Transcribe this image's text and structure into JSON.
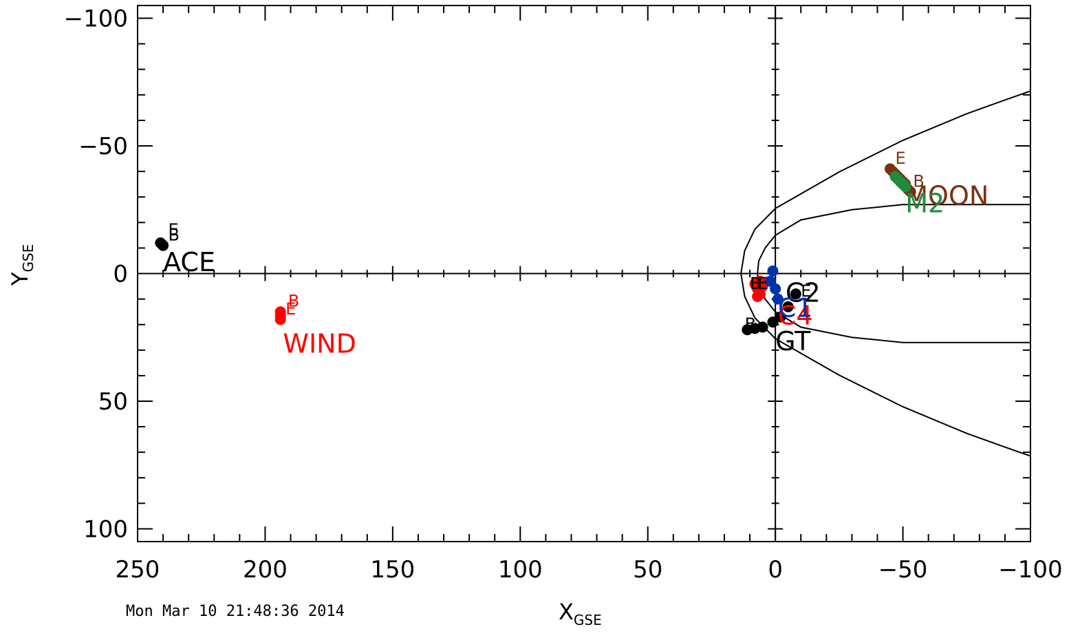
{
  "chart_data": {
    "type": "scatter",
    "xlabel": {
      "main": "X",
      "sub": "GSE"
    },
    "ylabel": {
      "main": "Y",
      "sub": "GSE"
    },
    "xlim": [
      250,
      -100
    ],
    "ylim": [
      -105,
      105
    ],
    "x_ticks": [
      250,
      200,
      150,
      100,
      50,
      0,
      -50,
      -100
    ],
    "x_tick_labels": [
      "250",
      "200",
      "150",
      "100",
      "50",
      "0",
      "−50",
      "−100"
    ],
    "y_ticks": [
      -100,
      -50,
      0,
      50,
      100
    ],
    "y_tick_labels": [
      "−100",
      "−50",
      "0",
      "50",
      "100"
    ],
    "x_minor_step": 10,
    "y_minor_step": 10,
    "reference_lines": {
      "x0": true,
      "y0": true
    },
    "boundaries": {
      "bow_shock": [
        [
          -100,
          -71.5
        ],
        [
          -90,
          -68
        ],
        [
          -75,
          -62.6
        ],
        [
          -50,
          -52.2
        ],
        [
          -25,
          -39.8
        ],
        [
          0,
          -25.5
        ],
        [
          8,
          -17.4
        ],
        [
          12,
          -9
        ],
        [
          13.5,
          0
        ],
        [
          12,
          9
        ],
        [
          8,
          17.4
        ],
        [
          0,
          25.5
        ],
        [
          -25,
          39.8
        ],
        [
          -50,
          52.2
        ],
        [
          -75,
          62.6
        ],
        [
          -90,
          68
        ],
        [
          -100,
          71.5
        ]
      ],
      "magnetopause": [
        [
          -100,
          -27
        ],
        [
          -80,
          -27
        ],
        [
          -50,
          -27
        ],
        [
          -30,
          -25
        ],
        [
          -10,
          -21
        ],
        [
          0,
          -15
        ],
        [
          4,
          -10
        ],
        [
          6.5,
          -5
        ],
        [
          7,
          0
        ],
        [
          6.5,
          5
        ],
        [
          4,
          10
        ],
        [
          0,
          15
        ],
        [
          -10,
          21
        ],
        [
          -30,
          25
        ],
        [
          -50,
          27
        ],
        [
          -80,
          27
        ],
        [
          -100,
          27
        ]
      ]
    },
    "series": [
      {
        "name": "ACE",
        "color": "#000000",
        "points": [
          [
            241,
            -12
          ],
          [
            240.5,
            -11.5
          ],
          [
            240,
            -11
          ]
        ],
        "label_pos": [
          240,
          -1
        ]
      },
      {
        "name": "WIND",
        "color": "#ff0000",
        "points": [
          [
            194,
            15
          ],
          [
            194,
            16.5
          ],
          [
            194,
            18
          ]
        ],
        "label_pos": [
          193,
          31
        ]
      },
      {
        "name": "MOON",
        "color": "#7b3010",
        "points": [
          [
            -45,
            -41
          ],
          [
            -46,
            -40
          ],
          [
            -47,
            -39
          ],
          [
            -48,
            -38
          ],
          [
            -49,
            -37
          ],
          [
            -50,
            -36
          ],
          [
            -51,
            -35
          ],
          [
            -52,
            -33
          ],
          [
            -53,
            -32
          ]
        ],
        "label_pos": [
          -51,
          -27
        ]
      },
      {
        "name": "M2",
        "color": "#1e8c3c",
        "points": [
          [
            -47,
            -38
          ],
          [
            -48,
            -37
          ],
          [
            -49,
            -36
          ],
          [
            -50,
            -35
          ],
          [
            -51,
            -34
          ]
        ],
        "label_pos": [
          -51,
          -24
        ]
      },
      {
        "name": "GT",
        "color": "#000000",
        "points": [
          [
            11,
            22
          ],
          [
            8,
            21.5
          ],
          [
            5,
            21
          ],
          [
            1,
            19
          ],
          [
            -2,
            17
          ],
          [
            -5,
            13
          ],
          [
            -8,
            8
          ]
        ],
        "label_pos": [
          0,
          30
        ]
      },
      {
        "name": "C2",
        "color": "#000000",
        "points": [],
        "label_pos": [
          -4,
          11
        ]
      },
      {
        "name": "C4",
        "color": "#ff0000",
        "points": [
          [
            8,
            4
          ],
          [
            7,
            6
          ],
          [
            6,
            8
          ],
          [
            7,
            9
          ],
          [
            5,
            5
          ],
          [
            6,
            3
          ]
        ],
        "label_pos": [
          -1,
          20
        ]
      },
      {
        "name": "C1",
        "color": "#0033aa",
        "points": [
          [
            1,
            -1
          ],
          [
            2,
            3
          ],
          [
            0,
            6
          ],
          [
            -1,
            10
          ]
        ],
        "label_pos": [
          -1,
          17
        ]
      }
    ],
    "marker_letters": [
      {
        "text": "E",
        "x": 238,
        "y": -15,
        "color": "#000000"
      },
      {
        "text": "B",
        "x": 238,
        "y": -13,
        "color": "#000000"
      },
      {
        "text": "B",
        "x": 191,
        "y": 13,
        "color": "#ff0000"
      },
      {
        "text": "E",
        "x": 192,
        "y": 16,
        "color": "#ff0000"
      },
      {
        "text": "E",
        "x": -47,
        "y": -43,
        "color": "#7b3010"
      },
      {
        "text": "B",
        "x": -54,
        "y": -34,
        "color": "#7b3010"
      },
      {
        "text": "B",
        "x": 12,
        "y": 22,
        "color": "#000000"
      },
      {
        "text": "E",
        "x": -10,
        "y": 9,
        "color": "#000000"
      },
      {
        "text": "B",
        "x": 10,
        "y": 6,
        "color": "#000000"
      },
      {
        "text": "E",
        "x": 7,
        "y": 6,
        "color": "#000000"
      }
    ],
    "timestamp": "Mon Mar 10 21:48:36 2014",
    "grid": false,
    "legend": "none"
  }
}
